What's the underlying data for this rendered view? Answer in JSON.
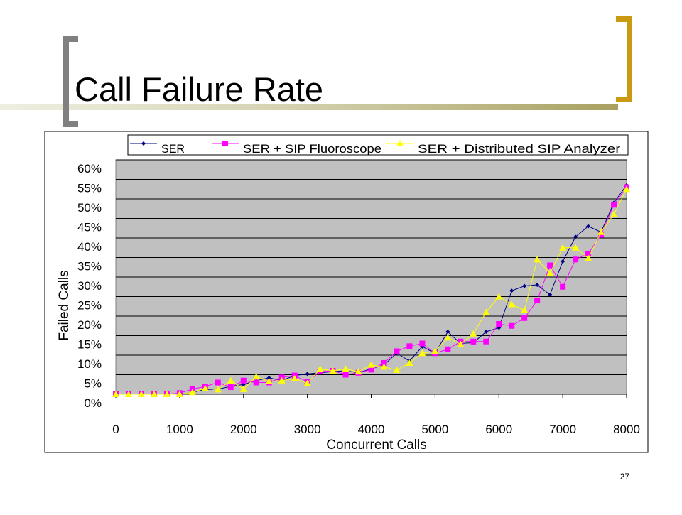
{
  "slide_title": "Call Failure Rate",
  "page_number": "27",
  "chart_data": {
    "type": "line",
    "x_label": "Concurrent Calls",
    "y_label": "Failed Calls",
    "x": [
      0,
      200,
      400,
      600,
      800,
      1000,
      1200,
      1400,
      1600,
      1800,
      2000,
      2200,
      2400,
      2600,
      2800,
      3000,
      3200,
      3400,
      3600,
      3800,
      4000,
      4200,
      4400,
      4600,
      4800,
      5000,
      5200,
      5400,
      5600,
      5800,
      6000,
      6200,
      6400,
      6600,
      6800,
      7000,
      7200,
      7400,
      7600,
      7800,
      8000
    ],
    "xlim": [
      0,
      8000
    ],
    "xticks": [
      0,
      1000,
      2000,
      3000,
      4000,
      5000,
      6000,
      7000,
      8000
    ],
    "ylim": [
      0,
      60
    ],
    "yticks": [
      {
        "value": 0,
        "label": "0%"
      },
      {
        "value": 5,
        "label": "5%"
      },
      {
        "value": 10,
        "label": "10%"
      },
      {
        "value": 15,
        "label": "15%"
      },
      {
        "value": 20,
        "label": "20%"
      },
      {
        "value": 25,
        "label": "25%"
      },
      {
        "value": 30,
        "label": "30%"
      },
      {
        "value": 35,
        "label": "35%"
      },
      {
        "value": 40,
        "label": "40%"
      },
      {
        "value": 45,
        "label": "45%"
      },
      {
        "value": 50,
        "label": "50%"
      },
      {
        "value": 55,
        "label": "55%"
      },
      {
        "value": 60,
        "label": "60%"
      }
    ],
    "grid": true,
    "plot_background": "#c0c0c0",
    "legend": "top",
    "series": [
      {
        "name": "SER",
        "color": "#000080",
        "marker": "diamond",
        "values": [
          0,
          0,
          0,
          0,
          0,
          0,
          0.5,
          1.2,
          1.3,
          2,
          2.5,
          3.5,
          4.2,
          3.5,
          4.8,
          5.2,
          5.5,
          5.8,
          6,
          5.5,
          6.5,
          7.5,
          10.5,
          8.5,
          12.2,
          10.5,
          16,
          13,
          13.2,
          16,
          17,
          26.5,
          27.7,
          28,
          25.5,
          34,
          40.3,
          43,
          41.5,
          49,
          53.5
        ]
      },
      {
        "name": "SER + SIP Fluoroscope",
        "color": "#ff00ff",
        "marker": "square",
        "values": [
          0,
          0,
          0,
          0,
          0,
          0.3,
          1.3,
          2,
          3,
          1.8,
          3.5,
          3,
          3,
          4.3,
          4.8,
          3.2,
          5.8,
          6,
          5,
          5.5,
          6.3,
          8,
          11,
          12.3,
          13,
          10.5,
          11.5,
          13.5,
          13.5,
          13.5,
          18,
          17.5,
          19.5,
          24,
          33,
          27.5,
          34.5,
          36,
          40.8,
          48.5,
          53
        ]
      },
      {
        "name": "SER + Distributed SIP Analyzer",
        "color": "#ffff00",
        "marker": "triangle",
        "values": [
          0,
          0,
          0,
          0,
          0,
          0,
          0.5,
          1.5,
          1.2,
          3.5,
          1.3,
          4.5,
          3.3,
          3.5,
          4,
          2.8,
          6.5,
          6,
          6.5,
          5.8,
          7.5,
          7,
          6.2,
          8,
          10.5,
          11,
          14.5,
          12.8,
          15.5,
          21,
          25,
          23,
          21.5,
          34.5,
          31,
          37.5,
          37.5,
          34.8,
          41.5,
          46,
          52.5
        ]
      }
    ]
  }
}
